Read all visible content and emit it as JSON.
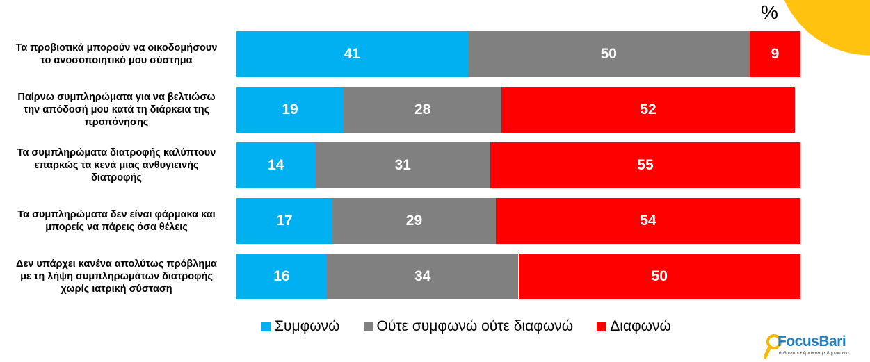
{
  "unit_label": "%",
  "colors": {
    "agree": "#00B0F0",
    "neutral": "#808080",
    "disagree": "#FF0000",
    "accent": "#FFC20E"
  },
  "chart_data": {
    "type": "bar",
    "orientation": "horizontal-stacked-100",
    "categories": [
      "Τα προβιοτικά μπορούν να οικοδομήσουν\nτο ανοσοποιητικό μου σύστημα",
      "Παίρνω συμπληρώματα για να βελτιώσω\nτην απόδοσή μου κατά τη διάρκεια της\nπροπόνησης",
      "Τα συμπληρώματα διατροφής καλύπτουν\nεπαρκώς τα κενά μιας ανθυγιεινής\nδιατροφής",
      "Τα συμπληρώματα δεν είναι φάρμακα και\nμπορείς να πάρεις όσα θέλεις",
      "Δεν υπάρχει κανένα απολύτως πρόβλημα\nμε τη λήψη συμπληρωμάτων διατροφής\nχωρίς ιατρική σύσταση"
    ],
    "series": [
      {
        "name": "Συμφωνώ",
        "values": [
          41,
          19,
          14,
          17,
          16
        ]
      },
      {
        "name": "Ούτε συμφωνώ ούτε διαφωνώ",
        "values": [
          50,
          28,
          31,
          29,
          34
        ]
      },
      {
        "name": "Διαφωνώ",
        "values": [
          9,
          52,
          55,
          54,
          50
        ]
      }
    ],
    "xlim": [
      0,
      100
    ],
    "legend": "bottom",
    "grid": false
  },
  "logo": {
    "name": "FocusBari",
    "tagline": "άνθρωποι • έμπνευση • δημιουργία"
  }
}
